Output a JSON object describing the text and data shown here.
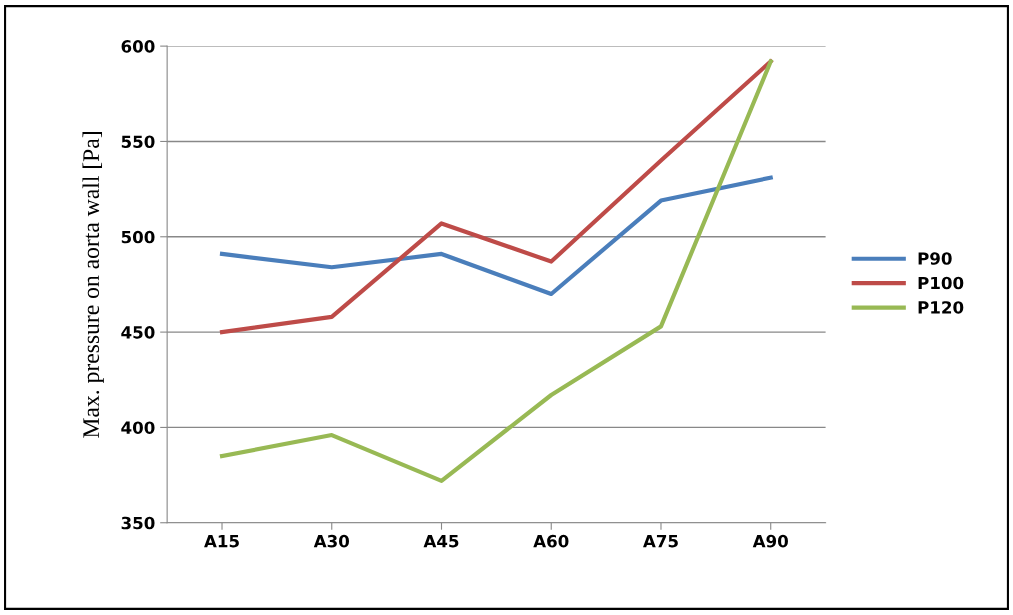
{
  "chart_data": {
    "type": "line",
    "ylabel": "Max. pressure on aorta wall [Pa]",
    "categories": [
      "A15",
      "A30",
      "A45",
      "A60",
      "A75",
      "A90"
    ],
    "series": [
      {
        "name": "P90",
        "color": "#4a7ebb",
        "values": [
          491,
          484,
          491,
          470,
          519,
          531
        ]
      },
      {
        "name": "P100",
        "color": "#be4b48",
        "values": [
          450,
          458,
          507,
          487,
          540,
          592
        ]
      },
      {
        "name": "P120",
        "color": "#98b954",
        "values": [
          385,
          396,
          372,
          417,
          453,
          592
        ]
      }
    ],
    "ylim": [
      350,
      600
    ],
    "yticks": [
      350,
      400,
      450,
      500,
      550,
      600
    ],
    "grid": "y",
    "legend": "right",
    "marker": "none",
    "line_style": "solid"
  }
}
